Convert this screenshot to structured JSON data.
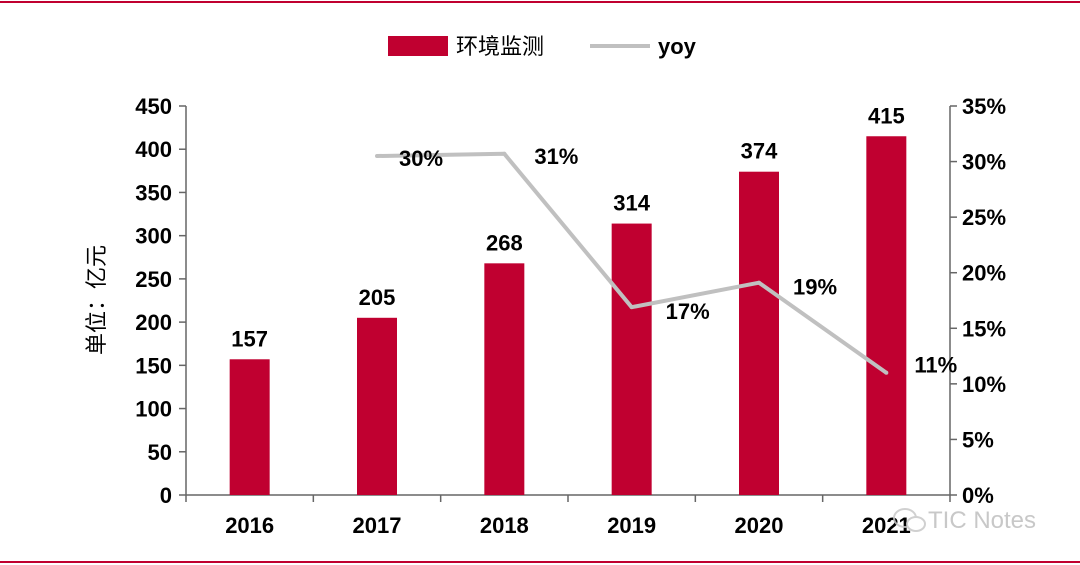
{
  "colors": {
    "bar": "#c00030",
    "line": "#c0c0c0",
    "axis": "#666666",
    "rule": "#c00030"
  },
  "watermark": {
    "text": "TIC Notes",
    "icon": "wechat-icon"
  },
  "chart_data": {
    "type": "bar",
    "categories": [
      "2016",
      "2017",
      "2018",
      "2019",
      "2020",
      "2021"
    ],
    "ylabel": "单位：亿元",
    "ylim": [
      0,
      450
    ],
    "y_ticks": [
      "0",
      "50",
      "100",
      "150",
      "200",
      "250",
      "300",
      "350",
      "400",
      "450"
    ],
    "y2lim": [
      0,
      35
    ],
    "y2_ticks": [
      "0%",
      "5%",
      "10%",
      "15%",
      "20%",
      "25%",
      "30%",
      "35%"
    ],
    "legend_position": "top",
    "grid": false,
    "series": [
      {
        "name": "环境监测",
        "type": "bar",
        "axis": "left",
        "values": [
          157,
          205,
          268,
          314,
          374,
          415
        ],
        "labels": [
          "157",
          "205",
          "268",
          "314",
          "374",
          "415"
        ]
      },
      {
        "name": "yoy",
        "type": "line",
        "axis": "right",
        "values": [
          null,
          30.5,
          30.7,
          16.9,
          19.1,
          11.0
        ],
        "labels": [
          "",
          "30%",
          "31%",
          "17%",
          "19%",
          "11%"
        ]
      }
    ]
  }
}
